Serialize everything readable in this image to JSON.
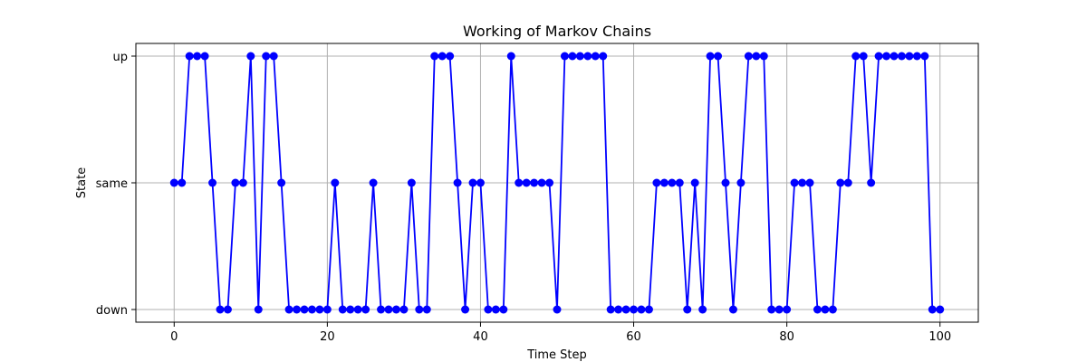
{
  "chart_data": {
    "type": "line",
    "title": "Working of Markov Chains",
    "xlabel": "Time Step",
    "ylabel": "State",
    "categories_y": [
      "down",
      "same",
      "up"
    ],
    "xlim": [
      -5,
      105
    ],
    "x_ticks": [
      0,
      20,
      40,
      60,
      80,
      100
    ],
    "grid": true,
    "line_color": "#0000ff",
    "marker": "circle",
    "series": [
      {
        "values": [
          "same",
          "same",
          "up",
          "up",
          "up",
          "same",
          "down",
          "down",
          "same",
          "same",
          "up",
          "down",
          "up",
          "up",
          "same",
          "down",
          "down",
          "down",
          "down",
          "down",
          "down",
          "same",
          "down",
          "down",
          "down",
          "down",
          "same",
          "down",
          "down",
          "down",
          "down",
          "same",
          "down",
          "down",
          "up",
          "up",
          "up",
          "same",
          "down",
          "same",
          "same",
          "down",
          "down",
          "down",
          "up",
          "same",
          "same",
          "same",
          "same",
          "same",
          "down",
          "up",
          "up",
          "up",
          "up",
          "up",
          "up",
          "down",
          "down",
          "down",
          "down",
          "down",
          "down",
          "same",
          "same",
          "same",
          "same",
          "down",
          "same",
          "down",
          "up",
          "up",
          "same",
          "down",
          "same",
          "up",
          "up",
          "up",
          "down",
          "down",
          "down",
          "same",
          "same",
          "same",
          "down",
          "down",
          "down",
          "same",
          "same",
          "up",
          "up",
          "same",
          "up",
          "up",
          "up",
          "up",
          "up",
          "up",
          "up",
          "down",
          "down"
        ]
      }
    ]
  }
}
